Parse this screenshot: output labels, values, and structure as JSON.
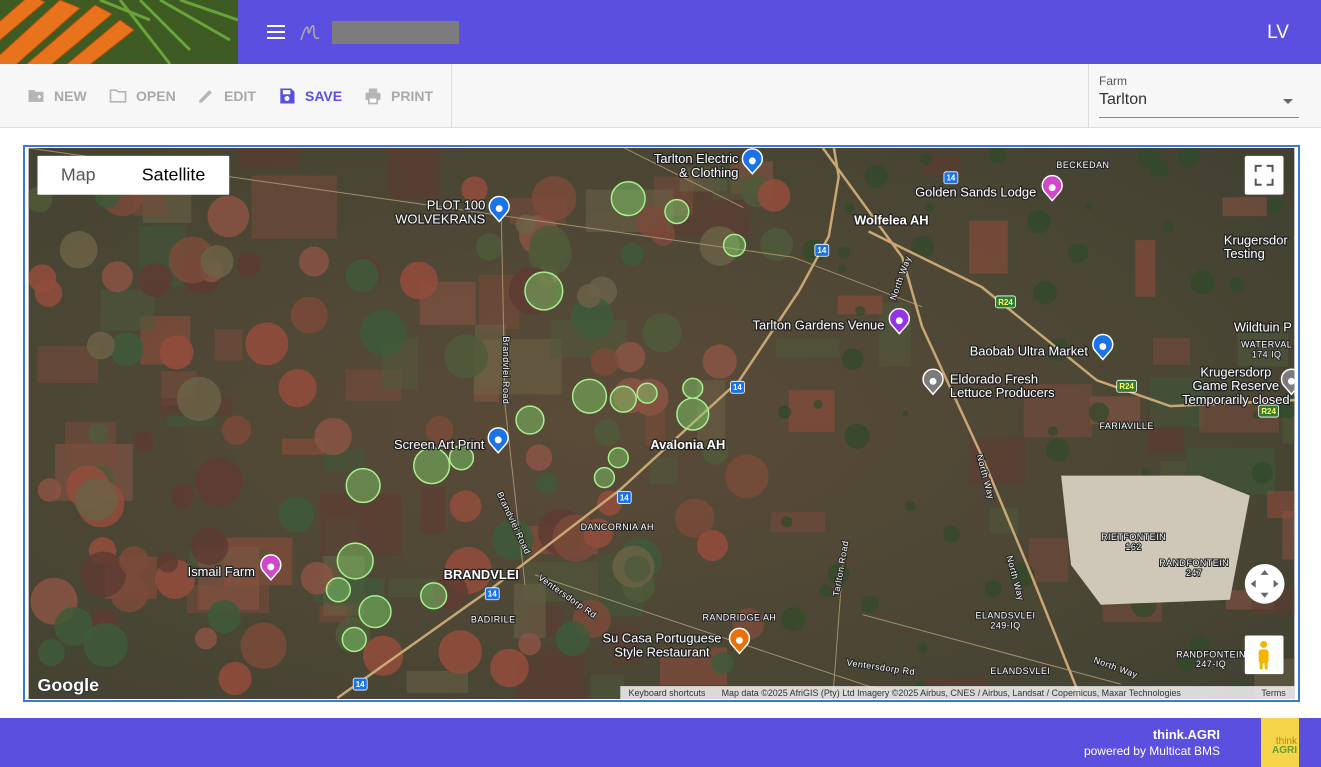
{
  "header": {
    "user_initials": "LV"
  },
  "toolbar": {
    "buttons": [
      "NEW",
      "OPEN",
      "EDIT",
      "SAVE",
      "PRINT"
    ],
    "farm_label": "Farm",
    "farm_value": "Tarlton"
  },
  "map": {
    "view_toggle": [
      "Map",
      "Satellite"
    ],
    "places": [
      {
        "lines": [
          "Tarlton Electric",
          "& Clothing"
        ]
      },
      {
        "lines": [
          "PLOT 100",
          "WOLVEKRANS"
        ]
      },
      {
        "lines": [
          "Golden Sands Lodge"
        ]
      },
      {
        "lines": [
          "Tarlton Gardens Venue"
        ]
      },
      {
        "lines": [
          "Baobab Ultra Market"
        ]
      },
      {
        "lines": [
          "Eldorado Fresh",
          "Lettuce Producers"
        ]
      },
      {
        "lines": [
          "Screen Art Print"
        ]
      },
      {
        "lines": [
          "Ismail Farm"
        ]
      },
      {
        "lines": [
          "Su Casa Portuguese",
          "Style Restaurant"
        ]
      },
      {
        "lines": [
          "Krugersdorp",
          "Game Reserve",
          "Temporarily closed"
        ]
      }
    ],
    "areas": [
      {
        "lines": [
          "Wolfelea AH"
        ]
      },
      {
        "lines": [
          "Avalonia AH"
        ]
      },
      {
        "lines": [
          "BECKEDAN"
        ]
      },
      {
        "lines": [
          "FARIAVILLE"
        ]
      },
      {
        "lines": [
          "DANCORNIA AH"
        ]
      },
      {
        "lines": [
          "BRANDVLEI"
        ]
      },
      {
        "lines": [
          "BADIRILE"
        ]
      },
      {
        "lines": [
          "RANDRIDGE AH"
        ]
      },
      {
        "lines": [
          "RIETFONTEIN",
          "162"
        ]
      },
      {
        "lines": [
          "RANDFONTEIN",
          "247"
        ]
      },
      {
        "lines": [
          "WATERVAL",
          "174 IQ"
        ]
      },
      {
        "lines": [
          "ELANDSVLEI",
          "249-IQ"
        ]
      },
      {
        "lines": [
          "RANDFONTEIN",
          "247-IQ"
        ]
      },
      {
        "lines": [
          "ELANDSVLEI"
        ]
      },
      {
        "lines": [
          "Krugersdor",
          "Testing"
        ]
      },
      {
        "lines": [
          "Wildtuin P"
        ]
      }
    ],
    "road_labels": [
      "North Way",
      "North Way",
      "North Way",
      "North Way",
      "Brandvlei Road",
      "Brandvlei Road",
      "Tarlton Road",
      "Ventersdorp Rd",
      "Ventersdorp Rd"
    ],
    "route_shields": [
      "14",
      "14",
      "14",
      "14",
      "14",
      "14",
      "R24",
      "R24",
      "R24"
    ],
    "google": "Google",
    "attribution": [
      "Keyboard shortcuts",
      "Map data ©2025 AfriGIS (Pty) Ltd Imagery ©2025 Airbus, CNES / Airbus, Landsat / Copernicus, Maxar Technologies",
      "Terms"
    ]
  },
  "footer": {
    "brand": "think.AGRI",
    "powered_by": "powered by Multicat BMS",
    "logo": [
      "think",
      "AGRI"
    ]
  }
}
